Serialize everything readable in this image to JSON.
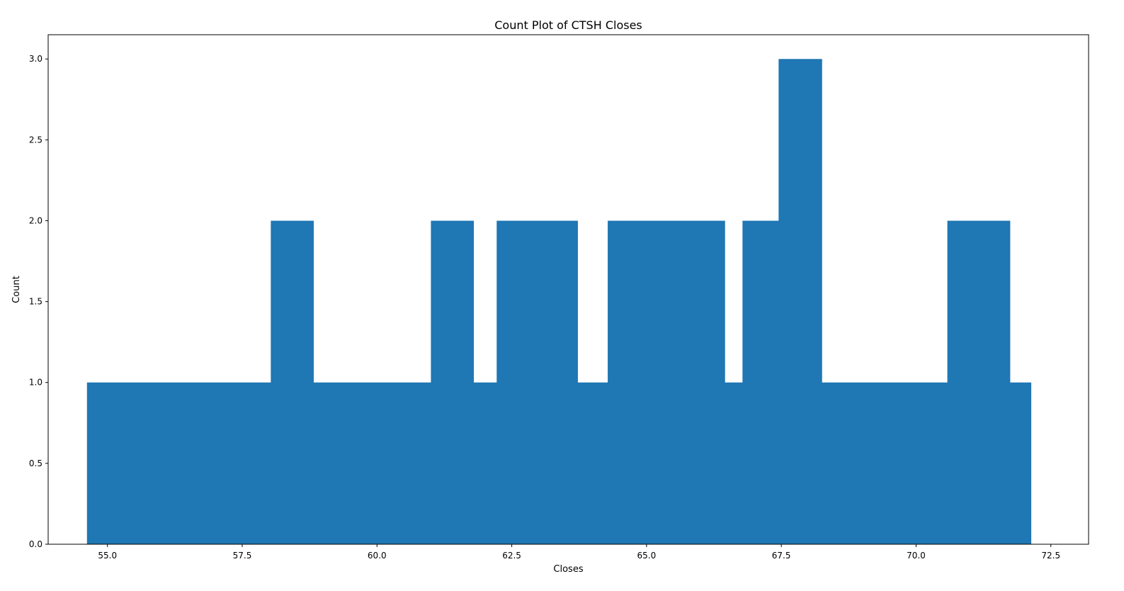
{
  "chart_data": {
    "type": "bar",
    "title": "Count Plot of CTSH Closes",
    "xlabel": "Closes",
    "ylabel": "Count",
    "xlim": [
      53.9,
      73.2
    ],
    "ylim": [
      0,
      3.15
    ],
    "xticks": [
      "55.0",
      "57.5",
      "60.0",
      "62.5",
      "65.0",
      "67.5",
      "70.0",
      "72.5"
    ],
    "yticks": [
      "0.0",
      "0.5",
      "1.0",
      "1.5",
      "2.0",
      "2.5",
      "3.0"
    ],
    "grid": false,
    "color": "#1f77b4",
    "bins": [
      {
        "start": 54.62,
        "end": 58.03,
        "count": 1
      },
      {
        "start": 58.03,
        "end": 58.82,
        "count": 2
      },
      {
        "start": 58.82,
        "end": 61.0,
        "count": 1
      },
      {
        "start": 61.0,
        "end": 61.79,
        "count": 2
      },
      {
        "start": 61.79,
        "end": 62.22,
        "count": 1
      },
      {
        "start": 62.22,
        "end": 63.72,
        "count": 2
      },
      {
        "start": 63.72,
        "end": 64.28,
        "count": 1
      },
      {
        "start": 64.28,
        "end": 66.45,
        "count": 2
      },
      {
        "start": 66.45,
        "end": 66.78,
        "count": 1
      },
      {
        "start": 66.78,
        "end": 67.45,
        "count": 2
      },
      {
        "start": 67.45,
        "end": 68.25,
        "count": 3
      },
      {
        "start": 68.25,
        "end": 70.58,
        "count": 1
      },
      {
        "start": 70.58,
        "end": 71.74,
        "count": 2
      },
      {
        "start": 71.74,
        "end": 72.13,
        "count": 1
      }
    ]
  }
}
